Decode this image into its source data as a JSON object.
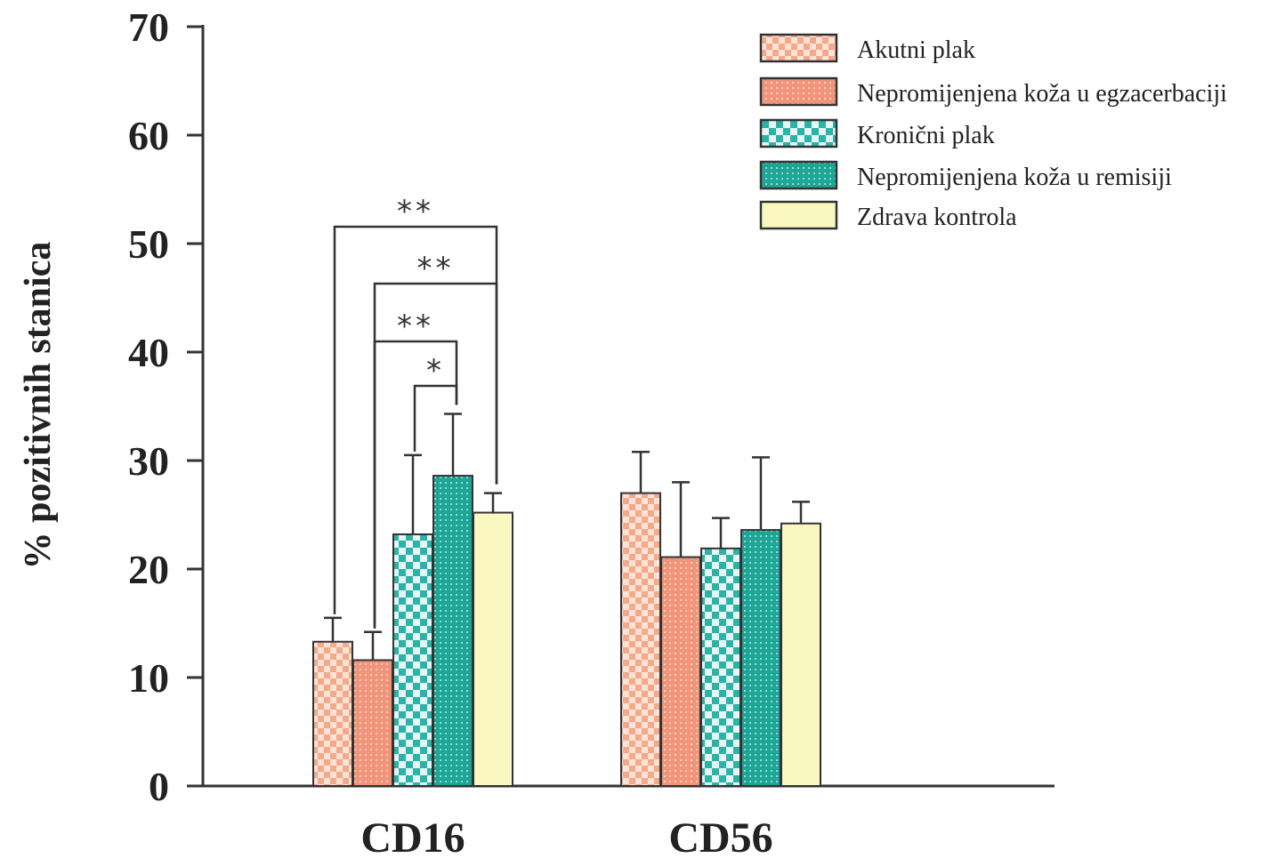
{
  "chart_data": {
    "type": "bar",
    "ylabel": "% pozitivnih stanica",
    "xlabel": "",
    "ylim": [
      0,
      70
    ],
    "yticks": [
      0,
      10,
      20,
      30,
      40,
      50,
      60,
      70
    ],
    "categories": [
      "CD16",
      "CD56"
    ],
    "series": [
      {
        "name": "Akutni plak",
        "values": [
          13.3,
          27.0
        ],
        "errors": [
          2.2,
          3.8
        ],
        "color": "#f4a98a",
        "pattern": "checker"
      },
      {
        "name": "Nepromijenjena koža u egzacerbaciji",
        "values": [
          11.6,
          21.1
        ],
        "errors": [
          2.6,
          6.9
        ],
        "color": "#f0957a",
        "pattern": "dots"
      },
      {
        "name": "Kronični plak",
        "values": [
          23.2,
          21.9
        ],
        "errors": [
          7.3,
          2.8
        ],
        "color": "#2bb3a7",
        "pattern": "checker"
      },
      {
        "name": "Nepromijenjena koža u remisiji",
        "values": [
          28.6,
          23.6
        ],
        "errors": [
          5.7,
          6.7
        ],
        "color": "#1ea596",
        "pattern": "dots"
      },
      {
        "name": "Zdrava kontrola",
        "values": [
          25.2,
          24.2
        ],
        "errors": [
          1.8,
          2.0
        ],
        "color": "#fbf7c0",
        "pattern": "solid"
      }
    ],
    "significance": [
      {
        "category": "CD16",
        "from_series": 0,
        "to_series": 4,
        "label": "**"
      },
      {
        "category": "CD16",
        "from_series": 1,
        "to_series": 4,
        "label": "**"
      },
      {
        "category": "CD16",
        "from_series": 1,
        "to_series": 3,
        "label": "**"
      },
      {
        "category": "CD16",
        "from_series": 2,
        "to_series": 3,
        "label": "*"
      }
    ],
    "legend_position": "top-right",
    "grid": false
  }
}
